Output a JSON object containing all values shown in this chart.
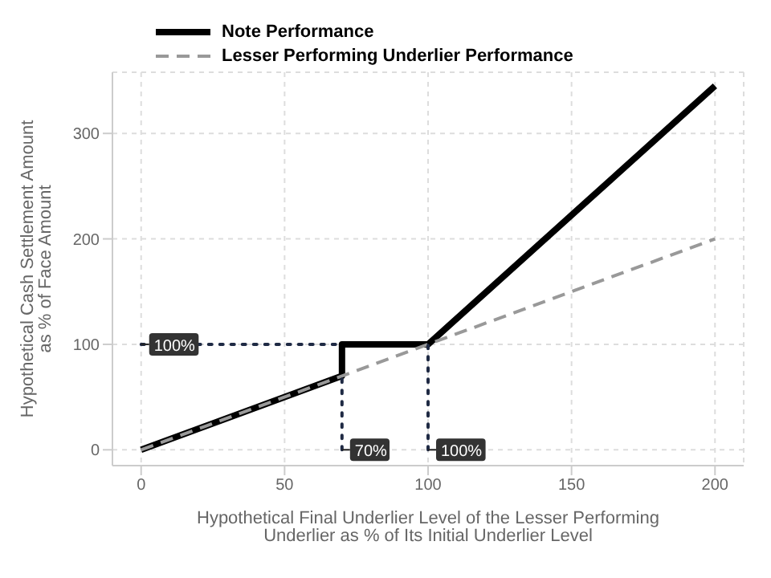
{
  "chart_data": {
    "type": "line",
    "xlabel": "Hypothetical Final Underlier Level of the Lesser Performing Underlier as % of Its Initial Underlier Level",
    "ylabel": "Hypothetical Cash Settlement Amount as % of Face Amount",
    "series": [
      {
        "name": "Note Performance",
        "color": "#000000",
        "x": [
          0,
          70,
          70,
          100,
          200
        ],
        "values": [
          0,
          70,
          100,
          100,
          345
        ],
        "line_style": "solid"
      },
      {
        "name": "Lesser Performing Underlier Performance",
        "color": "#999999",
        "x": [
          0,
          200
        ],
        "values": [
          0,
          200
        ],
        "line_style": "dashed"
      },
      {
        "color": "#1f2a44",
        "x": [
          0,
          70
        ],
        "values": [
          100,
          100
        ],
        "line_style": "dotted"
      },
      {
        "color": "#1f2a44",
        "x": [
          70,
          70
        ],
        "values": [
          0,
          70
        ],
        "line_style": "dotted"
      },
      {
        "color": "#1f2a44",
        "x": [
          100,
          100
        ],
        "values": [
          0,
          100
        ],
        "line_style": "dotted"
      }
    ],
    "annotations": [
      {
        "text": "100%",
        "x": 0,
        "y": 100
      },
      {
        "text": "70%",
        "x": 70,
        "y": 0
      },
      {
        "text": "100%",
        "x": 100,
        "y": 0
      }
    ],
    "xlim": [
      -10,
      210
    ],
    "xticks": [
      0,
      50,
      100,
      150,
      200
    ],
    "ylim": [
      -15,
      358
    ],
    "yticks": [
      0,
      100,
      200,
      300
    ],
    "grid": true,
    "legend": "top",
    "marker": "none"
  }
}
